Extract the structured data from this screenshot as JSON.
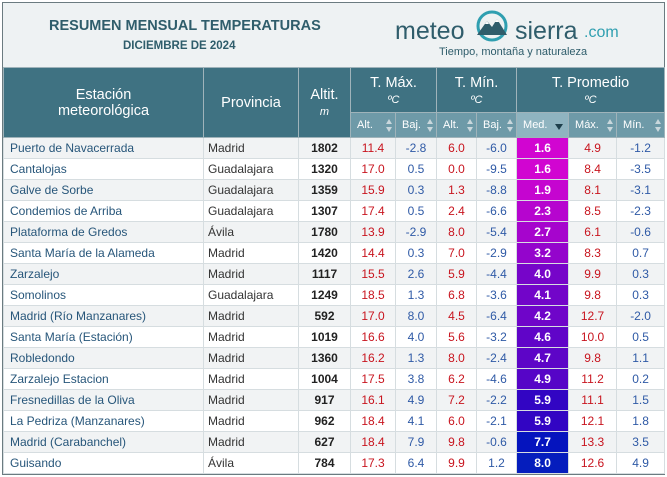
{
  "header": {
    "title": "RESUMEN MENSUAL TEMPERATURAS",
    "subtitle": "DICIEMBRE DE 2024"
  },
  "logo": {
    "meteo": "meteo",
    "sierra": "sierra",
    "domain": ".com",
    "tagline": "Tiempo, montaña y naturaleza"
  },
  "table": {
    "columns": {
      "station": [
        "Estación",
        "meteorológica"
      ],
      "province": "Provincia",
      "altitude": "Altit.",
      "altitude_unit": "m",
      "tmax": "T. Máx.",
      "tmax_unit": "ºC",
      "tmin": "T. Mín.",
      "tmin_unit": "ºC",
      "tavg": "T. Promedio",
      "tavg_unit": "ºC"
    },
    "subcolumns": [
      "Alt.",
      "Baj.",
      "Alt.",
      "Baj.",
      "Med.",
      "Máx.",
      "Mín."
    ],
    "rows": [
      [
        "Puerto de Navacerrada",
        "Madrid",
        "1802",
        "11.4",
        "-2.8",
        "6.0",
        "-6.0",
        "1.6",
        "4.9",
        "-1.2"
      ],
      [
        "Cantalojas",
        "Guadalajara",
        "1320",
        "17.0",
        "0.5",
        "0.0",
        "-9.5",
        "1.6",
        "8.4",
        "-3.5"
      ],
      [
        "Galve de Sorbe",
        "Guadalajara",
        "1359",
        "15.9",
        "0.3",
        "1.3",
        "-8.8",
        "1.9",
        "8.1",
        "-3.1"
      ],
      [
        "Condemios de Arriba",
        "Guadalajara",
        "1307",
        "17.4",
        "0.5",
        "2.4",
        "-6.6",
        "2.3",
        "8.5",
        "-2.3"
      ],
      [
        "Plataforma de Gredos",
        "Ávila",
        "1780",
        "13.9",
        "-2.9",
        "8.0",
        "-5.4",
        "2.7",
        "6.1",
        "-0.6"
      ],
      [
        "Santa María de la Alameda",
        "Madrid",
        "1420",
        "14.4",
        "0.3",
        "7.0",
        "-2.9",
        "3.2",
        "8.3",
        "0.7"
      ],
      [
        "Zarzalejo",
        "Madrid",
        "1117",
        "15.5",
        "2.6",
        "5.9",
        "-4.4",
        "4.0",
        "9.9",
        "0.3"
      ],
      [
        "Somolinos",
        "Guadalajara",
        "1249",
        "18.5",
        "1.3",
        "6.8",
        "-3.6",
        "4.1",
        "9.8",
        "0.3"
      ],
      [
        "Madrid (Río Manzanares)",
        "Madrid",
        "592",
        "17.0",
        "8.0",
        "4.5",
        "-6.4",
        "4.2",
        "12.7",
        "-2.0"
      ],
      [
        "Santa María (Estación)",
        "Madrid",
        "1019",
        "16.6",
        "4.0",
        "5.6",
        "-3.2",
        "4.6",
        "10.0",
        "0.5"
      ],
      [
        "Robledondo",
        "Madrid",
        "1360",
        "16.2",
        "1.3",
        "8.0",
        "-2.4",
        "4.7",
        "9.8",
        "1.1"
      ],
      [
        "Zarzalejo Estacion",
        "Madrid",
        "1004",
        "17.5",
        "3.8",
        "6.2",
        "-4.6",
        "4.9",
        "11.2",
        "0.2"
      ],
      [
        "Fresnedillas de la Oliva",
        "Madrid",
        "917",
        "16.1",
        "4.9",
        "7.2",
        "-2.2",
        "5.9",
        "11.1",
        "1.5"
      ],
      [
        "La Pedriza (Manzanares)",
        "Madrid",
        "962",
        "18.4",
        "4.1",
        "6.0",
        "-2.1",
        "5.9",
        "12.1",
        "1.8"
      ],
      [
        "Madrid (Carabanchel)",
        "Madrid",
        "627",
        "18.4",
        "7.9",
        "9.8",
        "-0.6",
        "7.7",
        "13.3",
        "3.5"
      ],
      [
        "Guisando",
        "Ávila",
        "784",
        "17.3",
        "6.4",
        "9.9",
        "1.2",
        "8.0",
        "12.6",
        "4.9"
      ]
    ]
  }
}
